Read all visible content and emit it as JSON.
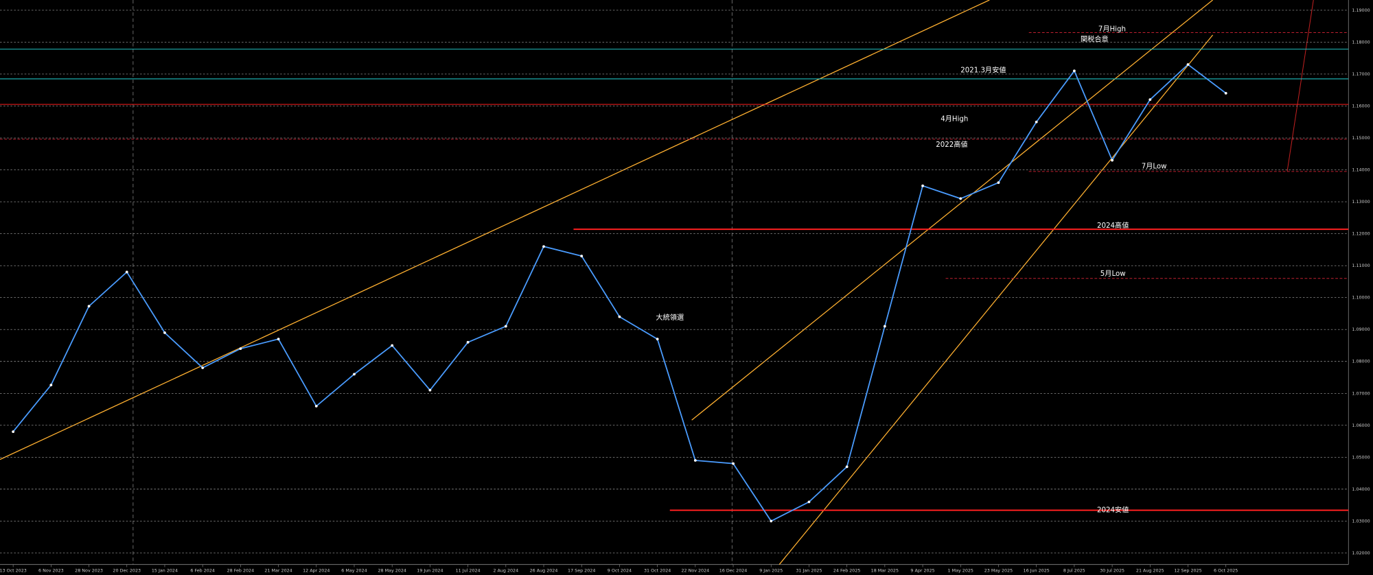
{
  "chart_data": {
    "type": "line",
    "categories": [
      "13 Oct 2023",
      "6 Nov 2023",
      "28 Nov 2023",
      "20 Dec 2023",
      "15 Jan 2024",
      "6 Feb 2024",
      "28 Feb 2024",
      "21 Mar 2024",
      "12 Apr 2024",
      "6 May 2024",
      "28 May 2024",
      "19 Jun 2024",
      "11 Jul 2024",
      "2 Aug 2024",
      "26 Aug 2024",
      "17 Sep 2024",
      "9 Oct 2024",
      "31 Oct 2024",
      "22 Nov 2024",
      "16 Dec 2024",
      "9 Jan 2025",
      "31 Jan 2025",
      "24 Feb 2025",
      "18 Mar 2025",
      "9 Apr 2025",
      "1 May 2025",
      "23 May 2025",
      "16 Jun 2025",
      "8 Jul 2025",
      "30 Jul 2025",
      "21 Aug 2025",
      "12 Sep 2025",
      "6 Oct 2025"
    ],
    "series": [
      {
        "color": "#4a9cff",
        "values": [
          1.058,
          1.0726,
          1.0973,
          1.108,
          1.089,
          1.078,
          1.084,
          1.087,
          1.066,
          1.076,
          1.085,
          1.071,
          1.086,
          1.091,
          1.116,
          1.113,
          1.094,
          1.087,
          1.049,
          1.048,
          1.03,
          1.036,
          1.047,
          1.091,
          1.135,
          1.131,
          1.136,
          1.155,
          1.171,
          1.143,
          1.162,
          1.173,
          1.164
        ]
      }
    ],
    "ylim": [
      1.0164,
      1.1932
    ],
    "yticks": [
      {
        "value": 1.02,
        "label": "1.02000"
      },
      {
        "value": 1.03,
        "label": "1.03000"
      },
      {
        "value": 1.04,
        "label": "1.04000"
      },
      {
        "value": 1.05,
        "label": "1.05000"
      },
      {
        "value": 1.06,
        "label": "1.06000"
      },
      {
        "value": 1.07,
        "label": "1.07000"
      },
      {
        "value": 1.08,
        "label": "1.08000"
      },
      {
        "value": 1.09,
        "label": "1.09000"
      },
      {
        "value": 1.1,
        "label": "1.10000"
      },
      {
        "value": 1.11,
        "label": "1.11000"
      },
      {
        "value": 1.12,
        "label": "1.12000"
      },
      {
        "value": 1.13,
        "label": "1.13000"
      },
      {
        "value": 1.14,
        "label": "1.14000"
      },
      {
        "value": 1.15,
        "label": "1.15000"
      },
      {
        "value": 1.16,
        "label": "1.16000"
      },
      {
        "value": 1.17,
        "label": "1.17000"
      },
      {
        "value": 1.18,
        "label": "1.18000"
      },
      {
        "value": 1.19,
        "label": "1.19000"
      }
    ],
    "grid": true,
    "levels": [
      {
        "value": 1.1214,
        "color": "#ff2020"
      },
      {
        "value": 1.0334,
        "color": "#ff2020"
      },
      {
        "value": 1.1778,
        "color": "#20c0c0"
      },
      {
        "value": 1.1685,
        "color": "#20c0c0"
      },
      {
        "value": 1.1605,
        "color": "#ff2020"
      },
      {
        "value": 1.1496,
        "color": "#c02030"
      },
      {
        "value": 1.183,
        "color": "#c02030"
      },
      {
        "value": 1.1395,
        "color": "#c02030"
      },
      {
        "value": 1.106,
        "color": "#c02030"
      }
    ],
    "annotations": [
      {
        "text": "7月High",
        "value": 1.1841
      },
      {
        "text": "関税合意",
        "value": 1.1808
      },
      {
        "text": "2021.3月安値",
        "value": 1.1712
      },
      {
        "text": "4月High",
        "value": 1.1559
      },
      {
        "text": "2022高値",
        "value": 1.1479
      },
      {
        "text": "7月Low",
        "value": 1.1411
      },
      {
        "text": "2024高値",
        "value": 1.1225
      },
      {
        "text": "5月Low",
        "value": 1.1074
      },
      {
        "text": "大統領選",
        "value": 1.0937
      },
      {
        "text": "2024安値",
        "value": 1.0334
      }
    ]
  }
}
